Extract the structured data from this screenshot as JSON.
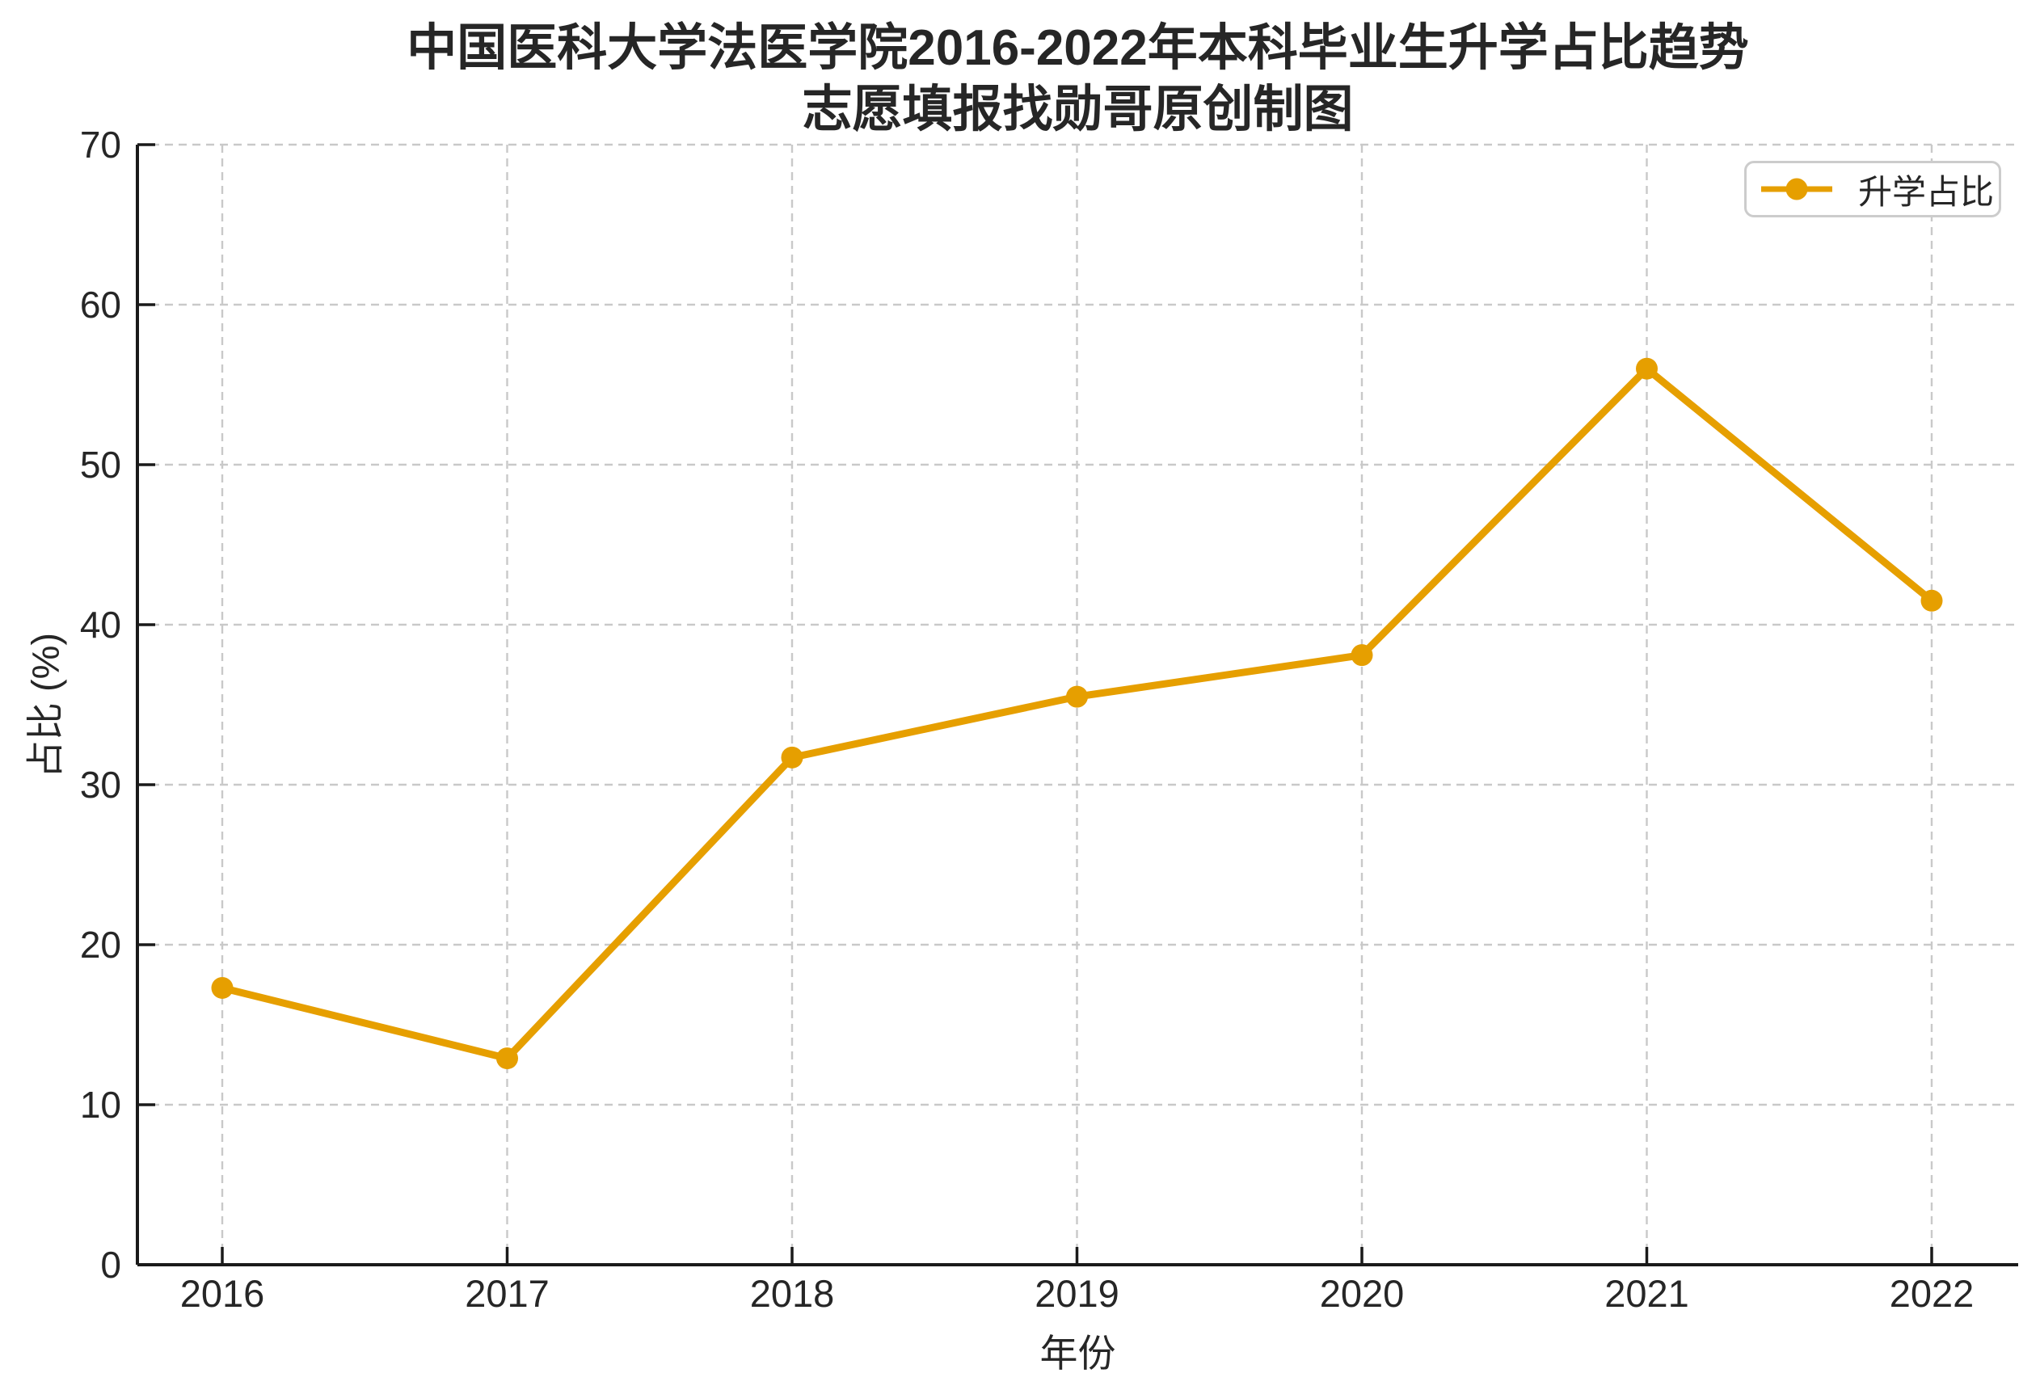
{
  "title": {
    "line1": "中国医科大学法医学院2016-2022年本科毕业生升学占比趋势",
    "line2": "志愿填报找勋哥原创制图"
  },
  "chart_data": {
    "type": "line",
    "categories": [
      "2016",
      "2017",
      "2018",
      "2019",
      "2020",
      "2021",
      "2022"
    ],
    "series": [
      {
        "name": "升学占比",
        "values": [
          17.3,
          12.9,
          31.7,
          35.5,
          38.1,
          56.0,
          41.5
        ],
        "color": "#E69F00",
        "marker": "circle"
      }
    ],
    "title": "中国医科大学法医学院2016-2022年本科毕业生升学占比趋势",
    "subtitle": "志愿填报找勋哥原创制图",
    "xlabel": "年份",
    "ylabel": "占比 (%)",
    "ylim": [
      0,
      70
    ],
    "yticks": [
      0,
      10,
      20,
      30,
      40,
      50,
      60,
      70
    ],
    "grid": "dashed both axes",
    "legend_position": "upper right"
  },
  "legend": {
    "entry": "升学占比"
  },
  "colors": {
    "series": "#E69F00",
    "text": "#262626",
    "gridline": "#c9c9c9",
    "spine": "#1a1a1a",
    "legend_border": "#cccccc",
    "background": "#ffffff"
  }
}
